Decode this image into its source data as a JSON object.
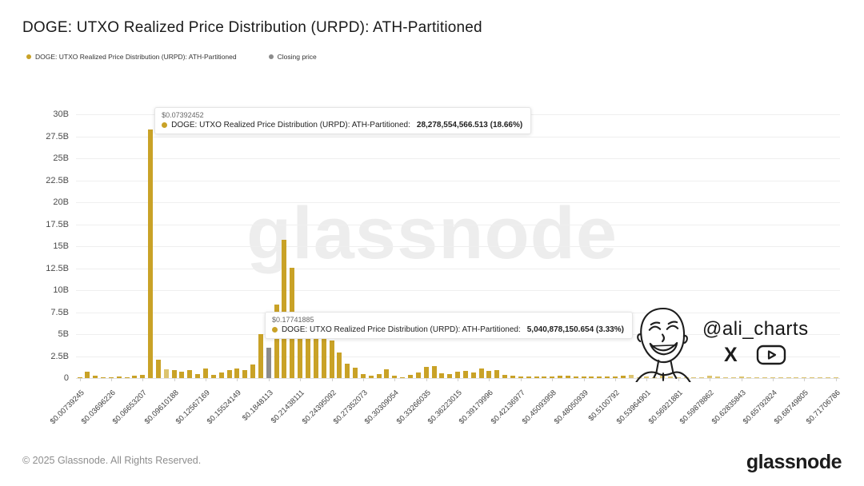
{
  "title": "DOGE: UTXO Realized Price Distribution (URPD): ATH-Partitioned",
  "legend": [
    {
      "label": "DOGE: UTXO Realized Price Distribution (URPD): ATH-Partitioned",
      "color": "#C9A227"
    },
    {
      "label": "Closing price",
      "color": "#8C8C8C"
    }
  ],
  "watermark": "glassnode",
  "tooltips": [
    {
      "price": "$0.07392452",
      "label": "DOGE: UTXO Realized Price Distribution (URPD): ATH-Partitioned:",
      "value": "28,278,554,566.513 (18.66%)",
      "bar_index": 9
    },
    {
      "price": "$0.17741885",
      "label": "DOGE: UTXO Realized Price Distribution (URPD): ATH-Partitioned:",
      "value": "5,040,878,150.654 (3.33%)",
      "bar_index": 23
    }
  ],
  "attribution": {
    "handle": "@ali_charts",
    "icons": [
      "x-logo-icon",
      "youtube-icon"
    ]
  },
  "footer": {
    "copyright": "© 2025 Glassnode. All Rights Reserved.",
    "brand": "glassnode"
  },
  "colors": {
    "bar": "#C9A227",
    "bar_light": "#DCC46F",
    "closing": "#8C8C8C",
    "grid": "#EFEFEF",
    "watermark": "#EBEBEB"
  },
  "chart_data": {
    "type": "bar",
    "title": "DOGE: UTXO Realized Price Distribution (URPD): ATH-Partitioned",
    "xlabel": "",
    "ylabel": "",
    "unit": "DOGE supply (billions)",
    "ylim_billions": [
      0,
      30
    ],
    "grid": true,
    "legend_position": "top-left",
    "price_step": 0.00739245,
    "start_price": 0.00739245,
    "y_ticks": [
      "30B",
      "27.5B",
      "25B",
      "22.5B",
      "20B",
      "17.5B",
      "15B",
      "12.5B",
      "10B",
      "7.5B",
      "5B",
      "2.5B",
      "0"
    ],
    "x_tick_labels": [
      "$0.00739245",
      "$0.03696226",
      "$0.06653207",
      "$0.09610188",
      "$0.12567169",
      "$0.15524149",
      "$0.1848113",
      "$0.21438111",
      "$0.24395092",
      "$0.27352073",
      "$0.30309054",
      "$0.33266035",
      "$0.36223015",
      "$0.39179996",
      "$0.42136977",
      "$0.45093958",
      "$0.48050939",
      "$0.5100792",
      "$0.53964901",
      "$0.56921881",
      "$0.59878862",
      "$0.62835843",
      "$0.65792824",
      "$0.68749805",
      "$0.71706786"
    ],
    "x_ticks_every_n_bars": 4,
    "series": [
      {
        "name": "DOGE: UTXO Realized Price Distribution (URPD): ATH-Partitioned",
        "values_billions": [
          0.04,
          0.75,
          0.28,
          0.12,
          0.1,
          0.15,
          0.1,
          0.3,
          0.38,
          28.278554566513,
          2.05,
          1.0,
          0.95,
          0.7,
          0.95,
          0.5,
          1.1,
          0.4,
          0.65,
          0.95,
          1.1,
          0.9,
          1.55,
          5.040878150654,
          3.5,
          8.4,
          15.7,
          12.55,
          5.6,
          5.5,
          5.45,
          5.3,
          4.3,
          2.9,
          1.65,
          1.2,
          0.45,
          0.25,
          0.5,
          1.0,
          0.3,
          0.12,
          0.35,
          0.6,
          1.3,
          1.4,
          0.55,
          0.5,
          0.7,
          0.85,
          0.6,
          1.1,
          0.8,
          0.9,
          0.35,
          0.25,
          0.15,
          0.2,
          0.15,
          0.2,
          0.15,
          0.3,
          0.3,
          0.15,
          0.2,
          0.2,
          0.15,
          0.15,
          0.2,
          0.3,
          0.35,
          0.1,
          0.15,
          0.1,
          0.25,
          0.15,
          0.1,
          0.12,
          0.1,
          0.12,
          0.3,
          0.15,
          0.12,
          0.1,
          0.15,
          0.12,
          0.1,
          0.12,
          0.1,
          0.08,
          0.1,
          0.08,
          0.06,
          0.08,
          0.06,
          0.05,
          0.05
        ]
      }
    ],
    "closing_price_bar": {
      "index": 24,
      "note": "gray bar = closing price bucket",
      "value_billions": 3.5
    },
    "light_bar_indices": [
      11
    ],
    "faded_from_index": 70,
    "annotated_points": [
      {
        "price": "$0.07392452",
        "value": 28278554566.513,
        "percent": "18.66%"
      },
      {
        "price": "$0.17741885",
        "value": 5040878150.654,
        "percent": "3.33%"
      }
    ]
  }
}
